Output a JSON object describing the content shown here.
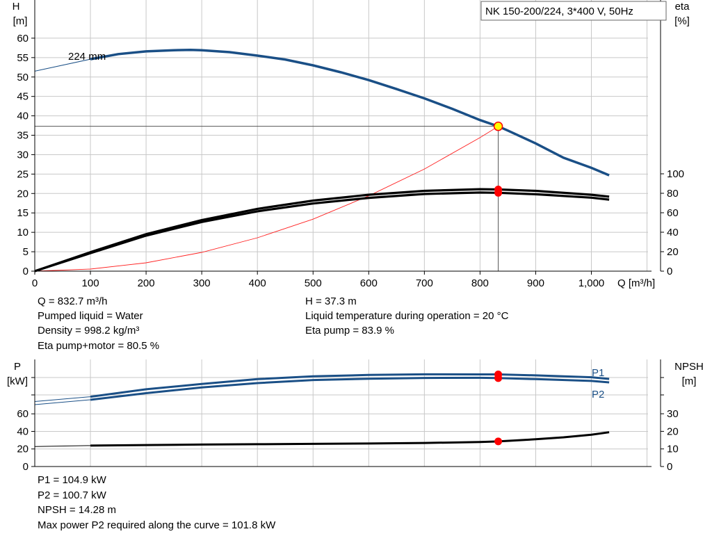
{
  "colors": {
    "curve_blue": "#1a4f86",
    "eta_black": "#000000",
    "system_red": "#ff2020",
    "operating_point_fill": "#ffff00",
    "operating_point_stroke": "#ff0000",
    "grid": "#c8c8c8"
  },
  "chart_data": [
    {
      "type": "line",
      "title": "NK 150-200/224, 3*400 V, 50Hz",
      "xlabel": "Q [m³/h]",
      "ylabel_left": [
        "H",
        "[m]"
      ],
      "ylabel_right": [
        "eta",
        "[%]"
      ],
      "xlim": [
        0,
        1100
      ],
      "ylim": [
        0,
        60
      ],
      "ylim_right": [
        0,
        100
      ],
      "grid": true,
      "x_ticks": [
        "0",
        "100",
        "200",
        "300",
        "400",
        "500",
        "600",
        "700",
        "800",
        "900",
        "1,000"
      ],
      "y_ticks": [
        "0",
        "5",
        "10",
        "15",
        "20",
        "25",
        "30",
        "35",
        "40",
        "45",
        "50",
        "55",
        "60"
      ],
      "y_right_ticks": [
        "0",
        "20",
        "40",
        "60",
        "80",
        "100"
      ],
      "curve_label": "224 mm",
      "series": [
        {
          "key": "h_curve",
          "x": [
            100,
            150,
            200,
            250,
            280,
            300,
            350,
            400,
            450,
            500,
            550,
            600,
            650,
            700,
            750,
            800,
            832.7,
            850,
            900,
            950,
            1000,
            1032
          ],
          "y": [
            54.6,
            55.9,
            56.6,
            56.9,
            57.0,
            56.9,
            56.4,
            55.5,
            54.5,
            53.0,
            51.2,
            49.2,
            46.9,
            44.5,
            41.8,
            38.9,
            37.3,
            36.2,
            32.9,
            29.2,
            26.6,
            24.7
          ]
        },
        {
          "key": "h_extrapolation",
          "x": [
            0,
            100
          ],
          "y": [
            51.5,
            54.6
          ]
        },
        {
          "key": "eta_pump",
          "x": [
            0,
            100,
            200,
            300,
            400,
            500,
            600,
            700,
            800,
            832.7,
            900,
            1000,
            1032
          ],
          "y": [
            0,
            19.5,
            38,
            52.5,
            64,
            72.5,
            78.5,
            82.5,
            84.2,
            83.9,
            82.5,
            78.5,
            76.5
          ]
        },
        {
          "key": "eta_total",
          "x": [
            0,
            100,
            200,
            300,
            400,
            500,
            600,
            700,
            800,
            832.7,
            900,
            1000,
            1032
          ],
          "y": [
            0,
            18.5,
            36.5,
            50.5,
            61.5,
            69.5,
            75.3,
            79.3,
            80.8,
            80.5,
            79,
            75.5,
            73.5
          ]
        },
        {
          "key": "system_curve",
          "x": [
            0,
            100,
            200,
            300,
            400,
            500,
            600,
            700,
            800,
            832.7
          ],
          "y": [
            0,
            0.54,
            2.15,
            4.84,
            8.6,
            13.4,
            19.4,
            26.3,
            34.4,
            37.3
          ]
        }
      ],
      "operating_point": {
        "q": 832.7,
        "h": 37.3,
        "eta_pump": 83.9,
        "eta_total": 80.5
      }
    },
    {
      "type": "line",
      "xlim": [
        0,
        1100
      ],
      "ylabel_left": [
        "P",
        "[kW]"
      ],
      "ylabel_right": [
        "NPSH",
        "[m]"
      ],
      "grid": true,
      "y_ticks": [
        "0",
        "20",
        "40",
        "60"
      ],
      "y_right_ticks": [
        "0",
        "10",
        "20",
        "30"
      ],
      "series": [
        {
          "key": "P1",
          "name": "P1",
          "x": [
            0,
            100,
            200,
            300,
            400,
            500,
            600,
            700,
            800,
            832.7,
            900,
            1000,
            1032
          ],
          "y": [
            74,
            79.5,
            88,
            94,
            99.5,
            102.7,
            104.3,
            105,
            104.9,
            104.9,
            103.8,
            101.7,
            99.8
          ]
        },
        {
          "key": "P2",
          "name": "P2",
          "x": [
            0,
            100,
            200,
            300,
            400,
            500,
            600,
            700,
            800,
            832.7,
            900,
            1000,
            1032
          ],
          "y": [
            70.5,
            76,
            83.5,
            90,
            95,
            98.5,
            100,
            100.9,
            101,
            100.7,
            99.5,
            97.5,
            95.8
          ]
        },
        {
          "key": "NPSH",
          "x": [
            0,
            100,
            200,
            300,
            400,
            500,
            600,
            700,
            800,
            832.7,
            900,
            950,
            1000,
            1032
          ],
          "y": [
            11.4,
            11.9,
            12.2,
            12.5,
            12.7,
            12.9,
            13.1,
            13.4,
            13.9,
            14.28,
            15.5,
            16.6,
            18.1,
            19.5
          ]
        }
      ],
      "operating_point": {
        "q": 832.7,
        "p1": 104.9,
        "p2": 100.7,
        "npsh": 14.28
      }
    }
  ],
  "info_upper_left": [
    "Q = 832.7 m³/h",
    "Pumped liquid = Water",
    "Density = 998.2 kg/m³",
    "Eta pump+motor = 80.5 %"
  ],
  "info_upper_right": [
    "H = 37.3 m",
    "Liquid temperature during operation = 20 °C",
    "Eta pump = 83.9 %"
  ],
  "info_lower": [
    "P1 = 104.9 kW",
    "P2 = 100.7 kW",
    "NPSH = 14.28 m",
    "Max power P2 required along the curve = 101.8 kW"
  ]
}
